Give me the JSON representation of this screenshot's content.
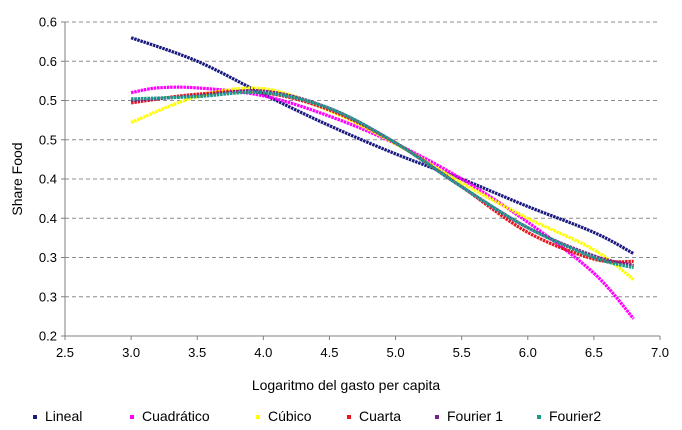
{
  "chart_data": {
    "type": "line",
    "xlabel": "Logaritmo del gasto per capita",
    "ylabel": "Share Food",
    "xlim": [
      2.5,
      7.0
    ],
    "ylim_ticks": [
      "0.2",
      "0.3",
      "0.3",
      "0.4",
      "0.4",
      "0.5",
      "0.5",
      "0.6",
      "0.6"
    ],
    "xticks": [
      "2.5",
      "3.0",
      "3.5",
      "4.0",
      "4.5",
      "5.0",
      "5.5",
      "6.0",
      "6.5",
      "7.0"
    ],
    "grid": "horizontal-dashed",
    "legend_position": "bottom",
    "series": [
      {
        "name": "Lineal",
        "color": "#1a1a80",
        "x": [
          3.0,
          3.5,
          4.0,
          4.5,
          5.0,
          5.5,
          6.0,
          6.5,
          6.8
        ],
        "y": [
          0.58,
          0.55,
          0.508,
          0.468,
          0.432,
          0.4,
          0.365,
          0.332,
          0.305
        ]
      },
      {
        "name": "Cuadrático",
        "color": "#ff00ff",
        "x": [
          3.0,
          3.2,
          3.5,
          4.0,
          4.5,
          5.0,
          5.5,
          6.0,
          6.5,
          6.8
        ],
        "y": [
          0.51,
          0.516,
          0.516,
          0.506,
          0.48,
          0.445,
          0.4,
          0.345,
          0.28,
          0.222
        ]
      },
      {
        "name": "Cúbico",
        "color": "#ffff00",
        "x": [
          3.0,
          3.5,
          4.0,
          4.5,
          5.0,
          5.5,
          6.0,
          6.5,
          6.8
        ],
        "y": [
          0.472,
          0.505,
          0.515,
          0.487,
          0.445,
          0.395,
          0.35,
          0.31,
          0.272
        ]
      },
      {
        "name": "Cuarta",
        "color": "#e8171e",
        "x": [
          3.0,
          3.5,
          4.0,
          4.5,
          5.0,
          5.5,
          6.0,
          6.5,
          6.8
        ],
        "y": [
          0.497,
          0.508,
          0.51,
          0.488,
          0.446,
          0.39,
          0.332,
          0.298,
          0.295
        ]
      },
      {
        "name": "Fourier 1",
        "color": "#7a1f8a",
        "x": [
          3.0,
          3.5,
          4.0,
          4.5,
          5.0,
          5.5,
          6.0,
          6.5,
          6.8
        ],
        "y": [
          0.5,
          0.506,
          0.512,
          0.49,
          0.446,
          0.39,
          0.338,
          0.302,
          0.29
        ]
      },
      {
        "name": "Fourier2",
        "color": "#1a9a8a",
        "x": [
          3.0,
          3.5,
          4.0,
          4.5,
          5.0,
          5.5,
          6.0,
          6.5,
          6.8
        ],
        "y": [
          0.502,
          0.505,
          0.51,
          0.49,
          0.446,
          0.39,
          0.338,
          0.3,
          0.287
        ]
      }
    ]
  }
}
